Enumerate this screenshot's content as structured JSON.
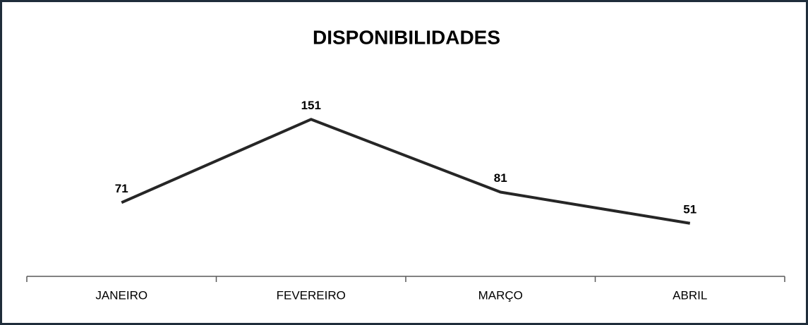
{
  "chart_data": {
    "type": "line",
    "title": "DISPONIBILIDADES",
    "categories": [
      "JANEIRO",
      "FEVEREIRO",
      "MARÇO",
      "ABRIL"
    ],
    "values": [
      71,
      151,
      81,
      51
    ],
    "color": "#262626",
    "ylim": [
      0,
      200
    ]
  }
}
